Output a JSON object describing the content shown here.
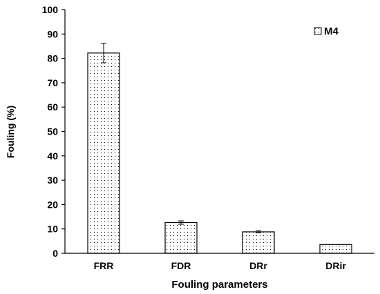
{
  "chart_data": {
    "type": "bar",
    "title": "",
    "xlabel": "Fouling parameters",
    "ylabel": "Fouling  (%)",
    "categories": [
      "FRR",
      "FDR",
      "DRr",
      "DRir"
    ],
    "series": [
      {
        "name": "M4",
        "values": [
          82.2,
          12.6,
          8.8,
          3.6
        ],
        "errors": [
          4.0,
          0.7,
          0.4,
          0.0
        ]
      }
    ],
    "ylim": [
      0,
      100
    ],
    "yticks": [
      0,
      10,
      20,
      30,
      40,
      50,
      60,
      70,
      80,
      90,
      100
    ],
    "grid": false,
    "legend_position": "top-right",
    "bar_fill": "dotted",
    "bar_color": "#ffffff",
    "edge_color": "#000000"
  }
}
